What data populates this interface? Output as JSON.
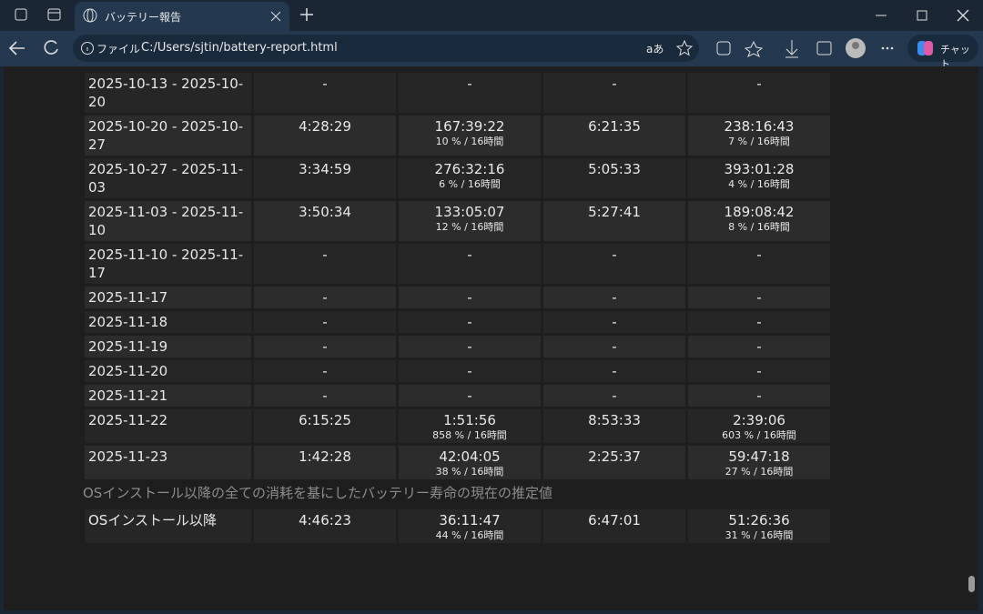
{
  "browser": {
    "tab_title": "バッテリー報告",
    "address_prefix": "ファイル",
    "url": "C:/Users/sjtin/battery-report.html",
    "reader_label": "aあ",
    "copilot_label": "チャット"
  },
  "table": {
    "rows": [
      {
        "period": "2025-10-13 - 2025-10-20",
        "cells": [
          {
            "value": "-"
          },
          {
            "value": "-"
          },
          {
            "value": "-"
          },
          {
            "value": "-"
          }
        ]
      },
      {
        "period": "2025-10-20 - 2025-10-27",
        "cells": [
          {
            "value": "4:28:29"
          },
          {
            "value": "167:39:22",
            "sub": "10 % / 16時間"
          },
          {
            "value": "6:21:35"
          },
          {
            "value": "238:16:43",
            "sub": "7 % / 16時間"
          }
        ]
      },
      {
        "period": "2025-10-27 - 2025-11-03",
        "cells": [
          {
            "value": "3:34:59"
          },
          {
            "value": "276:32:16",
            "sub": "6 % / 16時間"
          },
          {
            "value": "5:05:33"
          },
          {
            "value": "393:01:28",
            "sub": "4 % / 16時間"
          }
        ]
      },
      {
        "period": "2025-11-03 - 2025-11-10",
        "cells": [
          {
            "value": "3:50:34"
          },
          {
            "value": "133:05:07",
            "sub": "12 % / 16時間"
          },
          {
            "value": "5:27:41"
          },
          {
            "value": "189:08:42",
            "sub": "8 % / 16時間"
          }
        ]
      },
      {
        "period": "2025-11-10 - 2025-11-17",
        "cells": [
          {
            "value": "-"
          },
          {
            "value": "-"
          },
          {
            "value": "-"
          },
          {
            "value": "-"
          }
        ]
      },
      {
        "period": "2025-11-17",
        "cells": [
          {
            "value": "-"
          },
          {
            "value": "-"
          },
          {
            "value": "-"
          },
          {
            "value": "-"
          }
        ]
      },
      {
        "period": "2025-11-18",
        "cells": [
          {
            "value": "-"
          },
          {
            "value": "-"
          },
          {
            "value": "-"
          },
          {
            "value": "-"
          }
        ]
      },
      {
        "period": "2025-11-19",
        "cells": [
          {
            "value": "-"
          },
          {
            "value": "-"
          },
          {
            "value": "-"
          },
          {
            "value": "-"
          }
        ]
      },
      {
        "period": "2025-11-20",
        "cells": [
          {
            "value": "-"
          },
          {
            "value": "-"
          },
          {
            "value": "-"
          },
          {
            "value": "-"
          }
        ]
      },
      {
        "period": "2025-11-21",
        "cells": [
          {
            "value": "-"
          },
          {
            "value": "-"
          },
          {
            "value": "-"
          },
          {
            "value": "-"
          }
        ]
      },
      {
        "period": "2025-11-22",
        "cells": [
          {
            "value": "6:15:25"
          },
          {
            "value": "1:51:56",
            "sub": "858 % / 16時間"
          },
          {
            "value": "8:53:33"
          },
          {
            "value": "2:39:06",
            "sub": "603 % / 16時間"
          }
        ]
      },
      {
        "period": "2025-11-23",
        "cells": [
          {
            "value": "1:42:28"
          },
          {
            "value": "42:04:05",
            "sub": "38 % / 16時間"
          },
          {
            "value": "2:25:37"
          },
          {
            "value": "59:47:18",
            "sub": "27 % / 16時間"
          }
        ]
      }
    ]
  },
  "estimate": {
    "heading": "OSインストール以降の全ての消耗を基にしたバッテリー寿命の現在の推定値",
    "rows": [
      {
        "period": "OSインストール以降",
        "cells": [
          {
            "value": "4:46:23"
          },
          {
            "value": "36:11:47",
            "sub": "44 % / 16時間"
          },
          {
            "value": "6:47:01"
          },
          {
            "value": "51:26:36",
            "sub": "31 % / 16時間"
          }
        ]
      }
    ]
  }
}
